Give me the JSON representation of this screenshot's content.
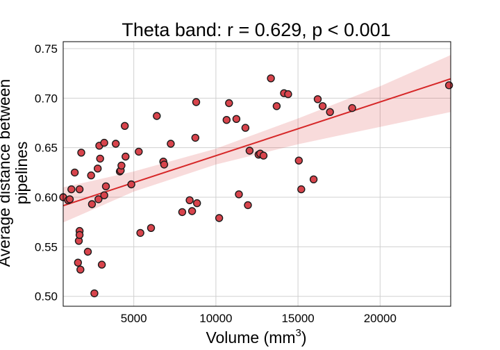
{
  "chart_data": {
    "type": "scatter",
    "title": "Theta band: r = 0.629, p < 0.001",
    "xlabel": "Volume (mm",
    "xlabel_sup": "3",
    "xlabel_close": ")",
    "ylabel_lines": [
      "Average distance between",
      "pipelines"
    ],
    "xlim": [
      700,
      24300
    ],
    "ylim": [
      0.49,
      0.757
    ],
    "xticks": [
      5000,
      10000,
      15000,
      20000
    ],
    "xtick_labels": [
      "5000",
      "10000",
      "15000",
      "20000"
    ],
    "yticks": [
      0.5,
      0.55,
      0.6,
      0.65,
      0.7,
      0.75
    ],
    "ytick_labels": [
      "0.50",
      "0.55",
      "0.60",
      "0.65",
      "0.70",
      "0.75"
    ],
    "grid": true,
    "colors": {
      "point": "#d8444c",
      "fit": "#d62728"
    },
    "points": [
      [
        700,
        0.6
      ],
      [
        1000,
        0.597
      ],
      [
        1100,
        0.598
      ],
      [
        1200,
        0.608
      ],
      [
        1400,
        0.625
      ],
      [
        1600,
        0.534
      ],
      [
        1650,
        0.556
      ],
      [
        1700,
        0.566
      ],
      [
        1700,
        0.562
      ],
      [
        1750,
        0.527
      ],
      [
        1700,
        0.608
      ],
      [
        1800,
        0.645
      ],
      [
        2200,
        0.545
      ],
      [
        2400,
        0.622
      ],
      [
        2450,
        0.593
      ],
      [
        2600,
        0.503
      ],
      [
        2800,
        0.629
      ],
      [
        2850,
        0.598
      ],
      [
        2900,
        0.652
      ],
      [
        2950,
        0.639
      ],
      [
        3050,
        0.532
      ],
      [
        3200,
        0.655
      ],
      [
        3200,
        0.602
      ],
      [
        3300,
        0.611
      ],
      [
        3900,
        0.654
      ],
      [
        4150,
        0.626
      ],
      [
        4200,
        0.627
      ],
      [
        4250,
        0.632
      ],
      [
        4450,
        0.672
      ],
      [
        4500,
        0.641
      ],
      [
        4850,
        0.613
      ],
      [
        5300,
        0.646
      ],
      [
        5400,
        0.564
      ],
      [
        6050,
        0.569
      ],
      [
        6400,
        0.682
      ],
      [
        6800,
        0.636
      ],
      [
        6850,
        0.633
      ],
      [
        7250,
        0.654
      ],
      [
        7950,
        0.585
      ],
      [
        8400,
        0.597
      ],
      [
        8550,
        0.586
      ],
      [
        8750,
        0.66
      ],
      [
        8850,
        0.594
      ],
      [
        8800,
        0.696
      ],
      [
        10200,
        0.579
      ],
      [
        10650,
        0.678
      ],
      [
        10800,
        0.695
      ],
      [
        11250,
        0.679
      ],
      [
        11400,
        0.603
      ],
      [
        11800,
        0.67
      ],
      [
        11950,
        0.592
      ],
      [
        12050,
        0.647
      ],
      [
        12600,
        0.643
      ],
      [
        12700,
        0.644
      ],
      [
        12900,
        0.642
      ],
      [
        13350,
        0.72
      ],
      [
        13700,
        0.692
      ],
      [
        14150,
        0.705
      ],
      [
        14400,
        0.704
      ],
      [
        15050,
        0.637
      ],
      [
        15200,
        0.608
      ],
      [
        15950,
        0.618
      ],
      [
        16200,
        0.699
      ],
      [
        16500,
        0.692
      ],
      [
        16950,
        0.686
      ],
      [
        18300,
        0.69
      ],
      [
        24200,
        0.713
      ]
    ],
    "regression": {
      "x": [
        700,
        24300
      ],
      "y": [
        0.5915,
        0.7195
      ]
    },
    "confidence_band": {
      "x": [
        700,
        5000,
        10000,
        15000,
        20000,
        24300
      ],
      "lower": [
        0.5745,
        0.6057,
        0.633,
        0.6535,
        0.671,
        0.686
      ],
      "upper": [
        0.61,
        0.626,
        0.649,
        0.6795,
        0.712,
        0.7435
      ]
    }
  }
}
